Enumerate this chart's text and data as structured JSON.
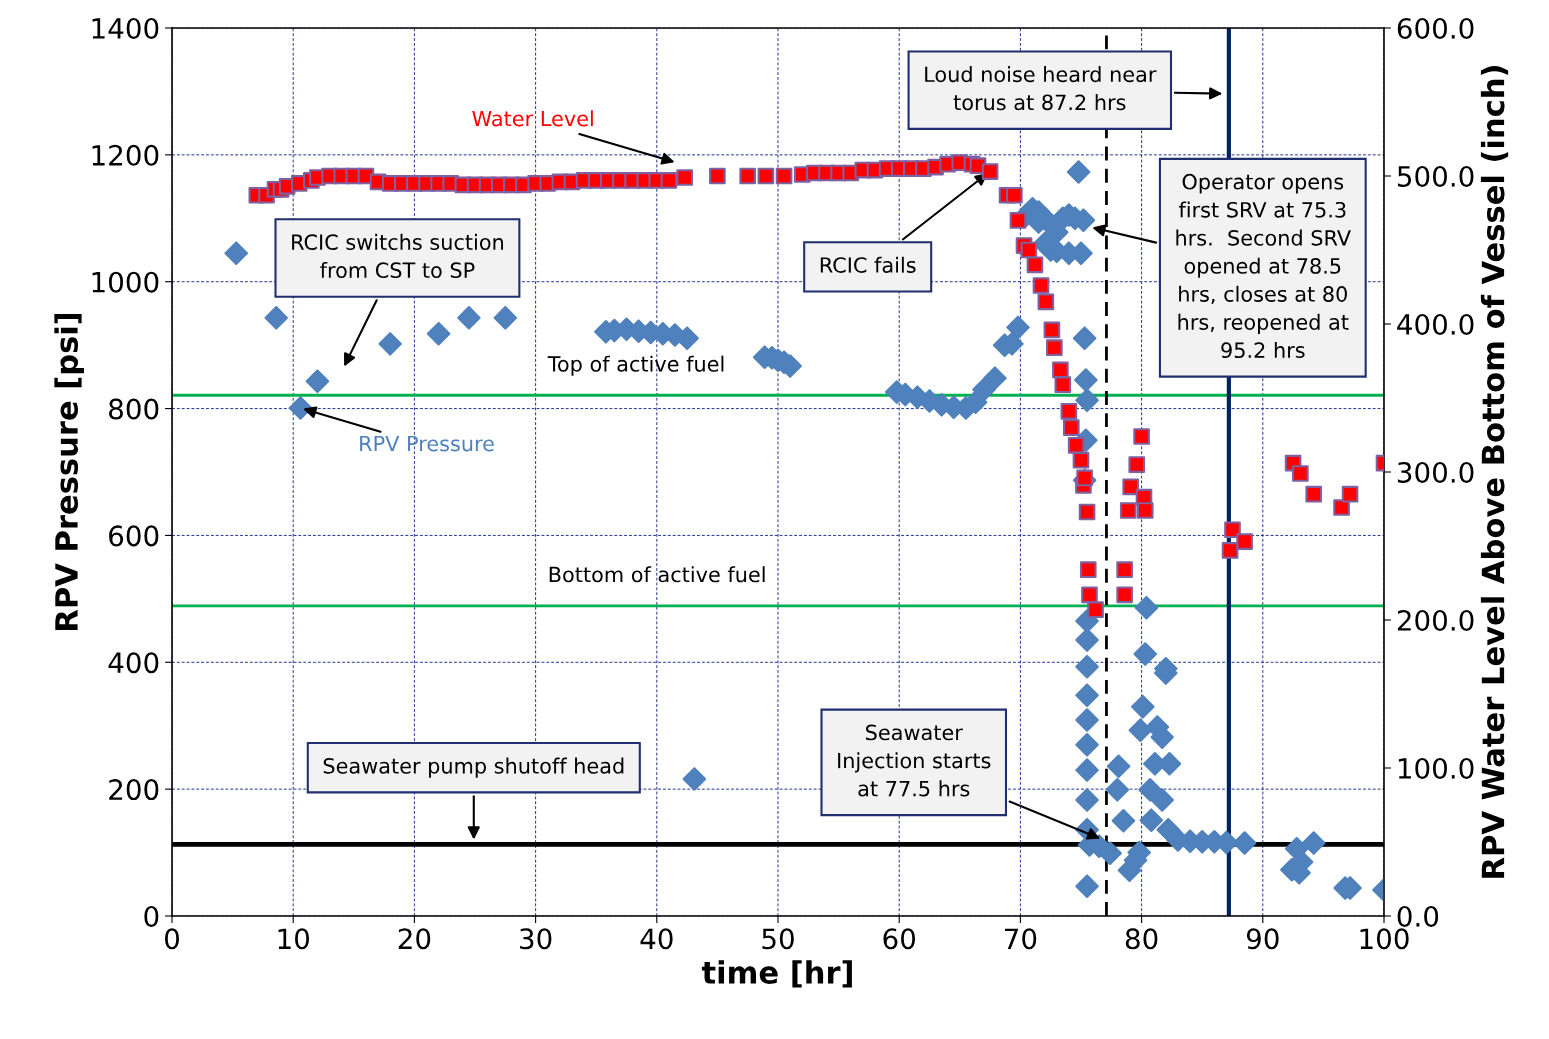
{
  "chart_data": {
    "type": "scatter",
    "xlabel": "time [hr]",
    "ylabel": "RPV Pressure [psi]",
    "y2label": "RPV Water Level Above Bottom of Vessel (inch)",
    "xlim": [
      0,
      100
    ],
    "xticks": [
      0,
      10,
      20,
      30,
      40,
      50,
      60,
      70,
      80,
      90,
      100
    ],
    "ylim": [
      0,
      1400
    ],
    "yticks": [
      0,
      200,
      400,
      600,
      800,
      1000,
      1200,
      1400
    ],
    "y2lim": [
      0,
      600
    ],
    "y2ticks": [
      {
        "value": 0,
        "label": "0.0"
      },
      {
        "value": 100,
        "label": "100.0"
      },
      {
        "value": 200,
        "label": "200.0"
      },
      {
        "value": 300,
        "label": "300.0"
      },
      {
        "value": 400,
        "label": "400.0"
      },
      {
        "value": 500,
        "label": "500.0"
      },
      {
        "value": 600,
        "label": "600.0"
      }
    ],
    "grid": true,
    "series": [
      {
        "marker": "diamond",
        "color": "#4f81bd",
        "x": [
          5.3,
          8.6,
          10.6,
          12.0,
          18.0,
          22.0,
          24.5,
          27.5,
          35.8,
          36.5,
          37.5,
          38.5,
          39.5,
          40.5,
          41.5,
          42.5,
          43.1,
          48.9,
          49.5,
          50.0,
          50.5,
          51.0,
          59.8,
          60.5,
          61.5,
          62.5,
          63.5,
          64.5,
          65.5,
          66.3,
          67.0,
          67.9,
          68.7,
          69.3,
          69.8,
          70.5,
          71.0,
          71.5,
          72.0,
          72.5,
          73.0,
          73.5,
          74.0,
          74.5,
          75.2,
          71.5,
          72.0,
          72.5,
          73.0,
          74.0,
          75.0,
          74.8,
          75.3,
          75.4,
          75.5,
          75.4,
          75.3,
          75.5,
          75.5,
          75.5,
          75.5,
          75.5,
          75.5,
          75.5,
          75.5,
          75.5,
          75.7,
          75.5,
          76.5,
          77.4,
          78.1,
          78.0,
          78.5,
          79.0,
          79.5,
          79.8,
          80.4,
          80.3,
          82.0,
          82.0,
          80.1,
          79.9,
          81.3,
          81.7,
          81.1,
          82.3,
          80.7,
          81.7,
          80.8,
          82.2,
          83.0,
          84.0,
          85.0,
          86.0,
          87.0,
          88.5,
          92.4,
          92.8,
          93.0,
          93.2,
          94.2,
          96.8,
          97.2,
          100
        ],
        "values": [
          1045,
          943,
          801,
          843,
          902,
          918,
          943,
          943,
          921,
          923,
          925,
          922,
          920,
          918,
          916,
          911,
          216,
          881,
          880,
          876,
          873,
          867,
          826,
          822,
          818,
          812,
          806,
          802,
          801,
          810,
          830,
          848,
          900,
          902,
          928,
          1105,
          1115,
          1110,
          1100,
          1090,
          1078,
          1100,
          1105,
          1100,
          1097,
          1094,
          1060,
          1050,
          1048,
          1045,
          1045,
          1173,
          911,
          845,
          813,
          750,
          687,
          465,
          435,
          393,
          348,
          309,
          270,
          230,
          183,
          136,
          112,
          47,
          110,
          99,
          236,
          199,
          150,
          72,
          88,
          100,
          486,
          413,
          383,
          390,
          330,
          293,
          298,
          282,
          240,
          240,
          199,
          183,
          151,
          136,
          120,
          118,
          117,
          117,
          116,
          115,
          73,
          106,
          68,
          85,
          115,
          44,
          44,
          41
        ]
      },
      {
        "marker": "square",
        "color": "#ff0000",
        "axis": "y2",
        "x": [
          7.0,
          7.8,
          8.5,
          9.0,
          9.5,
          10.5,
          11.5,
          12,
          13,
          14,
          15,
          16,
          17,
          18,
          19,
          20,
          21,
          22,
          23,
          24,
          25,
          26,
          27,
          28,
          29,
          30,
          31,
          32,
          33,
          34,
          35,
          36,
          37,
          38,
          39,
          40,
          41,
          42.3,
          45,
          47.5,
          49,
          50.5,
          52,
          53,
          54,
          55,
          56,
          57,
          58,
          59,
          60,
          61,
          62,
          63,
          64,
          65,
          66,
          66.5,
          67.5,
          68.9,
          69.5,
          69.8,
          70.3,
          70.7,
          71.2,
          71.7,
          72.1,
          72.6,
          72.8,
          73.3,
          73.5,
          74.0,
          74.2,
          74.6,
          75.0,
          75.2,
          75.3,
          75.5,
          75.6,
          75.7,
          76.2,
          78.6,
          78.6,
          78.9,
          79.1,
          79.6,
          80.0,
          80.2,
          80.3,
          87.3,
          87.5,
          88.5,
          92.5,
          93.1,
          94.2,
          96.5,
          97.2,
          100
        ],
        "values": [
          487,
          487,
          491,
          491,
          493,
          495,
          497,
          499,
          500,
          500,
          500,
          500,
          496,
          495,
          495,
          495,
          495,
          495,
          495,
          494,
          494,
          494,
          494,
          494,
          494,
          495,
          495,
          496,
          496,
          497,
          497,
          497,
          497,
          497,
          497,
          497,
          497,
          499,
          500,
          500,
          500,
          500,
          501,
          502,
          502,
          502,
          502,
          504,
          504,
          505,
          505,
          505,
          505,
          506,
          508,
          509,
          508,
          507,
          503,
          487,
          487,
          470,
          453,
          450,
          440,
          426,
          415,
          396,
          384,
          369,
          359,
          341,
          330,
          318,
          308,
          291,
          296,
          273,
          234,
          217,
          207,
          234,
          217,
          274,
          290,
          305,
          324,
          283,
          274,
          247,
          261,
          253,
          306,
          299,
          285,
          276,
          285,
          306
        ]
      }
    ],
    "ref_lines": [
      {
        "axis": "y",
        "value": 821,
        "label": "Top of active fuel",
        "color": "#00b050",
        "line_style": "solid"
      },
      {
        "axis": "y",
        "value": 489,
        "label": "Bottom of active fuel",
        "color": "#00b050",
        "line_style": "solid"
      },
      {
        "axis": "y",
        "value": 113,
        "color": "#000000",
        "line_style": "solid"
      },
      {
        "axis": "x",
        "value": 77.1,
        "color": "#000000",
        "line_style": "dashed"
      },
      {
        "axis": "x",
        "value": 87.2,
        "color": "#002060",
        "line_style": "solid"
      }
    ],
    "annotations": [
      "Water Level",
      "RCIC switchs suction\nfrom CST to SP",
      {
        "text": "RPV Pressure",
        "x": 10.6,
        "y": 801
      },
      {
        "text": "RCIC fails",
        "x": 67.5,
        "y": 1174
      },
      "Loud noise heard near\ntorus at 87.2 hrs",
      "Operator opens\nfirst SRV at 75.3\nhrs.  Second SRV\nopened at 78.5\nhrs, closes at 80\nhrs, reopened at\n95.2 hrs",
      "Seawater pump shutoff head",
      "Seawater\nInjection starts\nat 77.5 hrs"
    ]
  }
}
